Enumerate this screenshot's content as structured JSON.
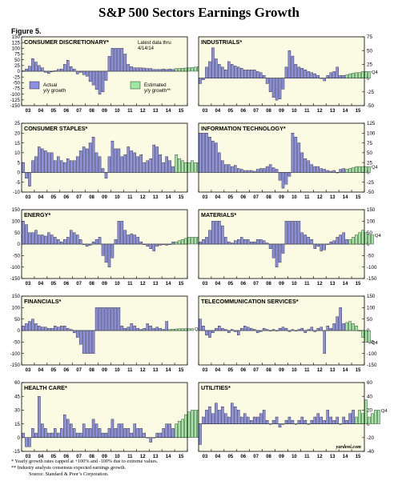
{
  "title": "S&P 500 Sectors Earnings Growth",
  "figure_label": "Figure 5.",
  "latest_note": [
    "Latest data thru",
    "4/14/14"
  ],
  "legend": {
    "actual": [
      "Actual",
      "y/y growth"
    ],
    "estimated": [
      "Estimated",
      "y/y growth**"
    ]
  },
  "watermark": "yardeni.com",
  "footnotes": [
    "*  Yearly growth rates capped at +100% and -100% due to extreme values.",
    "** Industry analysts consensus expected earnings growth."
  ],
  "source": "Source: Standard & Poor’s Corporation.",
  "colors": {
    "actual": "#8c8fe6",
    "estimated": "#9fe89f",
    "panel_bg": "#fbfbe3",
    "bar_edge": "#000000"
  },
  "chart_data": [
    {
      "type": "bar",
      "title": "CONSUMER DISCRETIONARY*",
      "yticks_left": [
        150,
        125,
        100,
        75,
        50,
        25,
        0,
        -25,
        -50,
        -75,
        -100,
        -125,
        -150
      ],
      "yticks_right": [],
      "ylim": [
        -150,
        150
      ],
      "xticks": [
        "03",
        "04",
        "05",
        "06",
        "07",
        "08",
        "09",
        "10",
        "11",
        "12",
        "13",
        "14",
        "15"
      ],
      "end_label": "Q4",
      "actual": [
        2,
        10,
        22,
        55,
        40,
        25,
        15,
        -5,
        -10,
        -3,
        2,
        8,
        10,
        30,
        48,
        20,
        10,
        -12,
        -5,
        -15,
        -22,
        -45,
        -60,
        -80,
        -100,
        -90,
        -40,
        65,
        100,
        100,
        100,
        100,
        75,
        30,
        20,
        15,
        15,
        15,
        14,
        12,
        12,
        8,
        8,
        8,
        10,
        8,
        10,
        8
      ],
      "estimated": [
        12,
        12,
        13,
        14,
        15,
        16,
        18,
        20
      ]
    },
    {
      "type": "bar",
      "title": "INDUSTRIALS*",
      "yticks_left": [],
      "yticks_right": [
        75,
        50,
        25,
        0,
        -25,
        -50
      ],
      "ylim": [
        -50,
        75
      ],
      "xticks": [
        "03",
        "04",
        "05",
        "06",
        "07",
        "08",
        "09",
        "10",
        "11",
        "12",
        "13",
        "14",
        "15"
      ],
      "end_label": "Q4",
      "actual": [
        -10,
        -3,
        20,
        30,
        55,
        35,
        25,
        20,
        15,
        30,
        25,
        22,
        20,
        18,
        15,
        15,
        15,
        15,
        12,
        10,
        5,
        -10,
        -25,
        -35,
        -40,
        -38,
        -20,
        20,
        50,
        40,
        25,
        20,
        18,
        15,
        12,
        10,
        8,
        5,
        0,
        -5,
        5,
        10,
        12,
        20,
        5,
        5
      ],
      "estimated": [
        6,
        8,
        9,
        10,
        10,
        12,
        12,
        12
      ]
    },
    {
      "type": "bar",
      "title": "CONSUMER STAPLES*",
      "yticks_left": [
        25,
        20,
        15,
        10,
        5,
        0,
        -5,
        -10
      ],
      "yticks_right": [],
      "ylim": [
        -10,
        25
      ],
      "xticks": [
        "03",
        "04",
        "05",
        "06",
        "07",
        "08",
        "09",
        "10",
        "11",
        "12",
        "13",
        "14",
        "15"
      ],
      "end_label": "Q4",
      "actual": [
        5,
        -3,
        -7,
        6,
        8,
        13,
        12,
        11,
        10,
        10,
        6,
        8,
        6,
        5,
        7,
        6,
        6,
        8,
        11,
        13,
        12,
        15,
        18,
        10,
        8,
        2,
        -3,
        8,
        16,
        12,
        12,
        8,
        9,
        13,
        11,
        10,
        8,
        9,
        5,
        6,
        7,
        14,
        13,
        9,
        5,
        8,
        6,
        3
      ],
      "estimated": [
        9,
        7,
        6,
        5,
        5,
        6,
        5,
        5
      ]
    },
    {
      "type": "bar",
      "title": "INFORMATION TECHNOLOGY*",
      "yticks_left": [],
      "yticks_right": [
        125,
        100,
        75,
        50,
        25,
        0,
        -25,
        -50
      ],
      "ylim": [
        -50,
        125
      ],
      "xticks": [
        "03",
        "04",
        "05",
        "06",
        "07",
        "08",
        "09",
        "10",
        "11",
        "12",
        "13",
        "14",
        "15"
      ],
      "end_label": "Q4",
      "actual": [
        100,
        100,
        100,
        90,
        80,
        75,
        50,
        30,
        20,
        20,
        15,
        18,
        10,
        8,
        5,
        5,
        5,
        3,
        8,
        10,
        10,
        15,
        20,
        12,
        8,
        -20,
        -40,
        -30,
        -10,
        100,
        90,
        75,
        50,
        35,
        30,
        20,
        15,
        15,
        10,
        8,
        5,
        3,
        5,
        0,
        8,
        10
      ],
      "estimated": [
        8,
        10,
        12,
        15,
        15,
        15,
        15,
        15
      ]
    },
    {
      "type": "bar",
      "title": "ENERGY*",
      "yticks_left": [
        150,
        100,
        50,
        0,
        -50,
        -100,
        -150
      ],
      "yticks_right": [],
      "ylim": [
        -150,
        150
      ],
      "xticks": [
        "03",
        "04",
        "05",
        "06",
        "07",
        "08",
        "09",
        "10",
        "11",
        "12",
        "13",
        "14",
        "15"
      ],
      "end_label": "Q4",
      "actual": [
        100,
        85,
        50,
        50,
        60,
        40,
        40,
        35,
        50,
        40,
        30,
        20,
        10,
        20,
        30,
        60,
        50,
        40,
        20,
        0,
        -10,
        -5,
        10,
        20,
        30,
        -50,
        -80,
        -100,
        -60,
        20,
        100,
        100,
        60,
        40,
        45,
        40,
        30,
        10,
        0,
        -10,
        -20,
        -30,
        -10,
        -5,
        0,
        -5,
        0,
        10
      ],
      "estimated": [
        10,
        15,
        20,
        25,
        30,
        30,
        30,
        30
      ]
    },
    {
      "type": "bar",
      "title": "MATERIALS*",
      "yticks_left": [],
      "yticks_right": [
        150,
        100,
        50,
        0,
        -50,
        -100,
        -150
      ],
      "ylim": [
        -150,
        150
      ],
      "xticks": [
        "03",
        "04",
        "05",
        "06",
        "07",
        "08",
        "09",
        "10",
        "11",
        "12",
        "13",
        "14",
        "15"
      ],
      "end_label": "Q4",
      "actual": [
        10,
        20,
        30,
        60,
        100,
        100,
        100,
        80,
        30,
        10,
        5,
        15,
        20,
        30,
        20,
        20,
        10,
        10,
        20,
        20,
        15,
        5,
        -20,
        -60,
        -100,
        -80,
        -40,
        100,
        100,
        100,
        100,
        100,
        50,
        40,
        30,
        20,
        -20,
        -10,
        -30,
        -25,
        0,
        10,
        15,
        30,
        40,
        50,
        20
      ],
      "estimated": [
        20,
        30,
        40,
        50,
        60,
        50,
        40,
        40
      ]
    },
    {
      "type": "bar",
      "title": "FINANCIALS*",
      "yticks_left": [
        150,
        100,
        50,
        0,
        -50,
        -100,
        -150
      ],
      "yticks_right": [],
      "ylim": [
        -150,
        150
      ],
      "xticks": [
        "03",
        "04",
        "05",
        "06",
        "07",
        "08",
        "09",
        "10",
        "11",
        "12",
        "13",
        "14",
        "15"
      ],
      "end_label": "Q4",
      "actual": [
        20,
        30,
        40,
        50,
        30,
        20,
        15,
        15,
        10,
        10,
        20,
        15,
        20,
        20,
        10,
        5,
        -10,
        -30,
        -60,
        -100,
        -100,
        -100,
        -100,
        100,
        100,
        100,
        100,
        100,
        100,
        100,
        100,
        20,
        10,
        15,
        30,
        20,
        10,
        5,
        10,
        30,
        20,
        10,
        15,
        10,
        5,
        40
      ],
      "estimated": [
        5,
        6,
        7,
        8,
        8,
        8,
        8,
        8
      ]
    },
    {
      "type": "bar",
      "title": "TELECOMMUNICATION SERVICES*",
      "yticks_left": [],
      "yticks_right": [
        150,
        100,
        50,
        0,
        -50,
        -100,
        -150
      ],
      "ylim": [
        -150,
        150
      ],
      "xticks": [
        "03",
        "04",
        "05",
        "06",
        "07",
        "08",
        "09",
        "10",
        "11",
        "12",
        "13",
        "14",
        "15"
      ],
      "end_label": "Q4",
      "actual": [
        50,
        20,
        -20,
        -30,
        -10,
        10,
        20,
        10,
        5,
        -10,
        5,
        -5,
        -20,
        10,
        20,
        15,
        10,
        5,
        -10,
        -5,
        10,
        5,
        0,
        5,
        0,
        10,
        15,
        10,
        -5,
        5,
        0,
        5,
        10,
        -10,
        5,
        15,
        -5,
        10,
        15,
        -100,
        20,
        10,
        30,
        60,
        100,
        30
      ],
      "estimated": [
        35,
        40,
        30,
        20,
        0,
        -30,
        -50,
        -50
      ]
    },
    {
      "type": "bar",
      "title": "HEALTH CARE*",
      "yticks_left": [
        60,
        45,
        30,
        15,
        0,
        -15
      ],
      "yticks_right": [],
      "ylim": [
        -15,
        60
      ],
      "xticks": [
        "03",
        "04",
        "05",
        "06",
        "07",
        "08",
        "09",
        "10",
        "11",
        "12",
        "13",
        "14",
        "15"
      ],
      "end_label": "Q4",
      "actual": [
        5,
        -10,
        -10,
        10,
        5,
        45,
        15,
        10,
        5,
        5,
        10,
        5,
        10,
        25,
        20,
        15,
        10,
        5,
        5,
        15,
        10,
        10,
        20,
        15,
        10,
        5,
        5,
        10,
        20,
        10,
        15,
        15,
        10,
        10,
        5,
        15,
        10,
        10,
        5,
        0,
        -5,
        0,
        5,
        5,
        10,
        15,
        15,
        10
      ],
      "estimated": [
        15,
        18,
        20,
        25,
        28,
        30,
        30,
        30
      ]
    },
    {
      "type": "bar",
      "title": "UTILITIES*",
      "yticks_left": [],
      "yticks_right": [
        60,
        40,
        20,
        0,
        -20,
        -40
      ],
      "ylim": [
        -40,
        60
      ],
      "xticks": [
        "03",
        "04",
        "05",
        "06",
        "07",
        "08",
        "09",
        "10",
        "11",
        "12",
        "13",
        "14",
        "15"
      ],
      "end_label": "Q4",
      "actual": [
        -30,
        10,
        20,
        25,
        15,
        30,
        20,
        25,
        15,
        10,
        30,
        25,
        20,
        10,
        15,
        10,
        5,
        10,
        10,
        15,
        20,
        5,
        0,
        5,
        10,
        -5,
        0,
        5,
        10,
        5,
        0,
        5,
        10,
        5,
        0,
        5,
        10,
        15,
        10,
        5,
        20,
        10,
        5,
        10,
        0,
        10,
        5,
        15,
        20
      ],
      "estimated": [
        10,
        20,
        15,
        35,
        10,
        15,
        20,
        20
      ]
    }
  ]
}
